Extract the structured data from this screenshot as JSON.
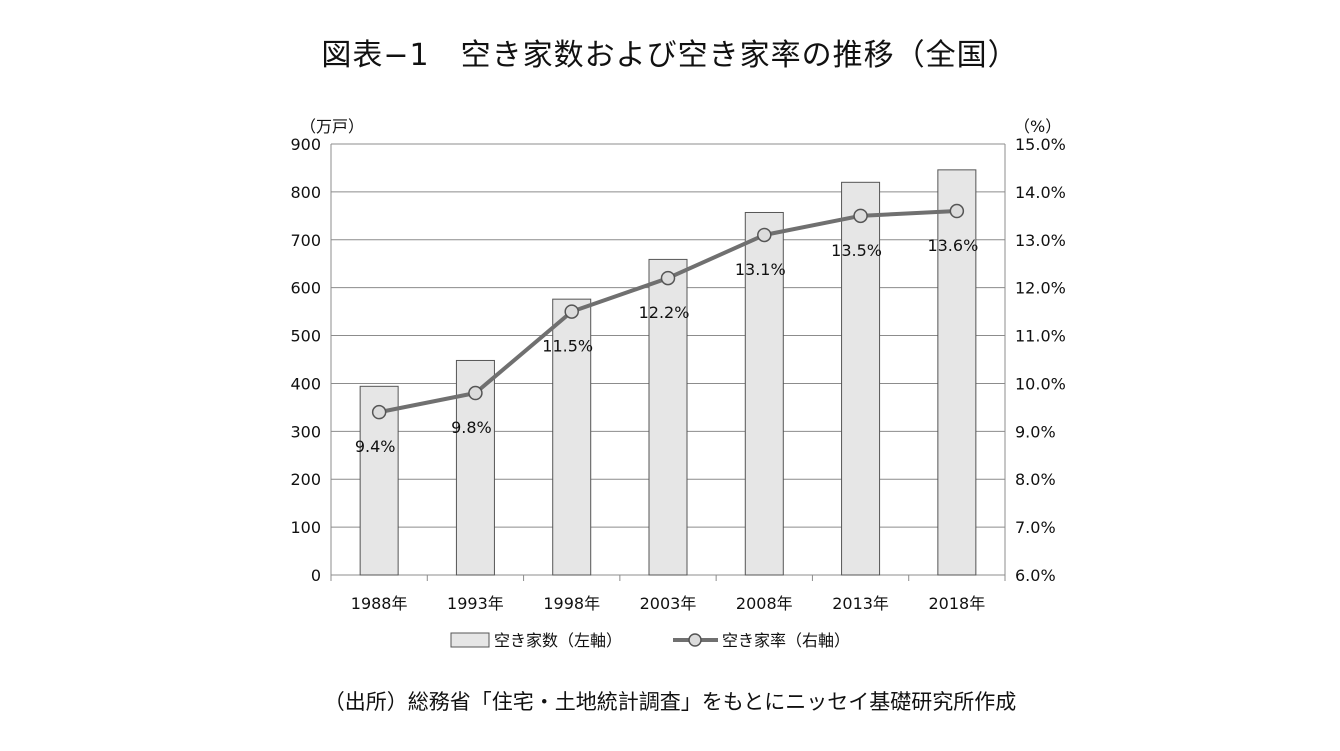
{
  "title": "図表−1　空き家数および空き家率の推移（全国）",
  "source": "（出所）総務省「住宅・土地統計調査」をもとにニッセイ基礎研究所作成",
  "chart_data": {
    "type": "bar",
    "categories": [
      "1988年",
      "1993年",
      "1998年",
      "2003年",
      "2008年",
      "2013年",
      "2018年"
    ],
    "series": [
      {
        "name": "空き家数（左軸）",
        "type": "bar",
        "axis": "left",
        "values": [
          394,
          448,
          576,
          659,
          757,
          820,
          846
        ],
        "color": "#e6e6e6"
      },
      {
        "name": "空き家率（右軸）",
        "type": "line",
        "axis": "right",
        "values": [
          9.4,
          9.8,
          11.5,
          12.2,
          13.1,
          13.5,
          13.6
        ],
        "labels": [
          "9.4%",
          "9.8%",
          "11.5%",
          "12.2%",
          "13.1%",
          "13.5%",
          "13.6%"
        ],
        "color": "#707070"
      }
    ],
    "left_axis": {
      "unit": "（万戸）",
      "min": 0,
      "max": 900,
      "ticks": [
        "0",
        "100",
        "200",
        "300",
        "400",
        "500",
        "600",
        "700",
        "800",
        "900"
      ]
    },
    "right_axis": {
      "unit": "（%）",
      "min": 6.0,
      "max": 15.0,
      "ticks": [
        "6.0%",
        "7.0%",
        "8.0%",
        "9.0%",
        "10.0%",
        "11.0%",
        "12.0%",
        "13.0%",
        "14.0%",
        "15.0%"
      ]
    },
    "grid": true,
    "legend": "bottom"
  }
}
